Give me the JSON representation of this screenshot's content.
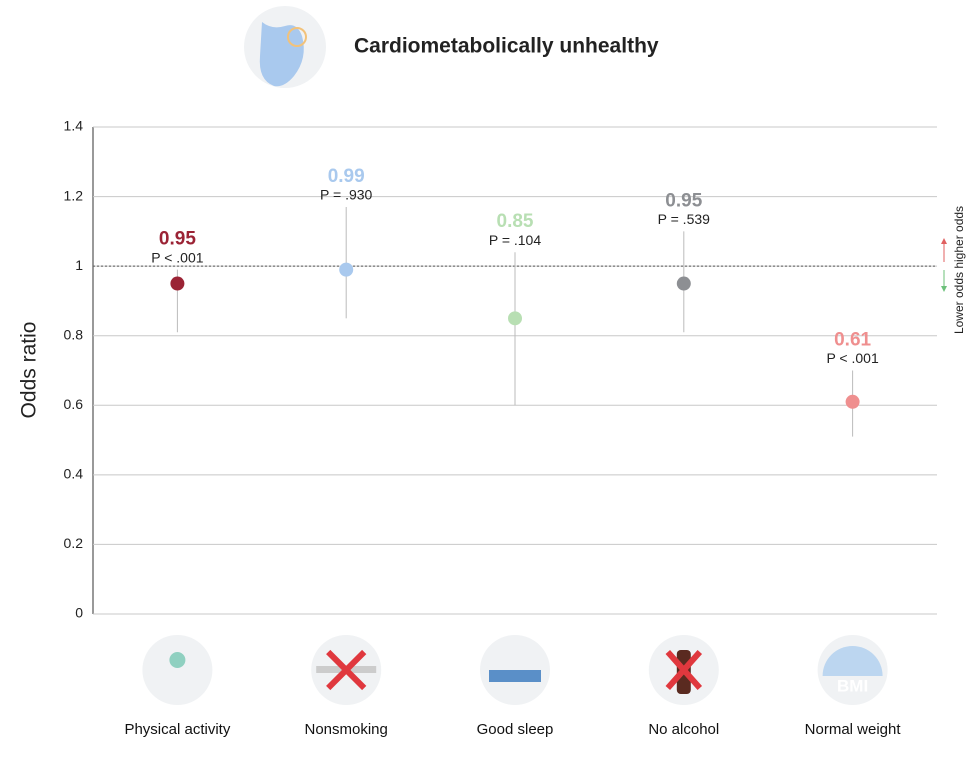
{
  "chart_data": {
    "type": "errorbar",
    "title": "Cardiometabolically unhealthy",
    "ylabel": "Odds ratio",
    "categories": [
      "Physical activity",
      "Nonsmoking",
      "Good sleep",
      "No alcohol",
      "Normal weight"
    ],
    "series": [
      {
        "name": "Odds ratio",
        "values": [
          0.95,
          0.99,
          0.85,
          0.95,
          0.61
        ],
        "ci_low": [
          0.81,
          0.85,
          0.6,
          0.81,
          0.51
        ],
        "ci_high": [
          0.99,
          1.17,
          1.04,
          1.1,
          0.7
        ],
        "colors": [
          "#9b2335",
          "#a9c9ee",
          "#b8dfb3",
          "#8d8f93",
          "#ef8f8f"
        ]
      }
    ],
    "p_labels": [
      "P < .001",
      "P = .930",
      "P = .104",
      "P = .539",
      "P < .001"
    ],
    "reference_line": 1,
    "direction_labels": [
      "Lower odds",
      "higher odds"
    ],
    "bmi_icon_text": "BMI",
    "ylim": [
      0,
      1.4
    ],
    "yticks": [
      0,
      0.2,
      0.4,
      0.6,
      0.8,
      1,
      1.2,
      1.4
    ],
    "grid": true
  }
}
